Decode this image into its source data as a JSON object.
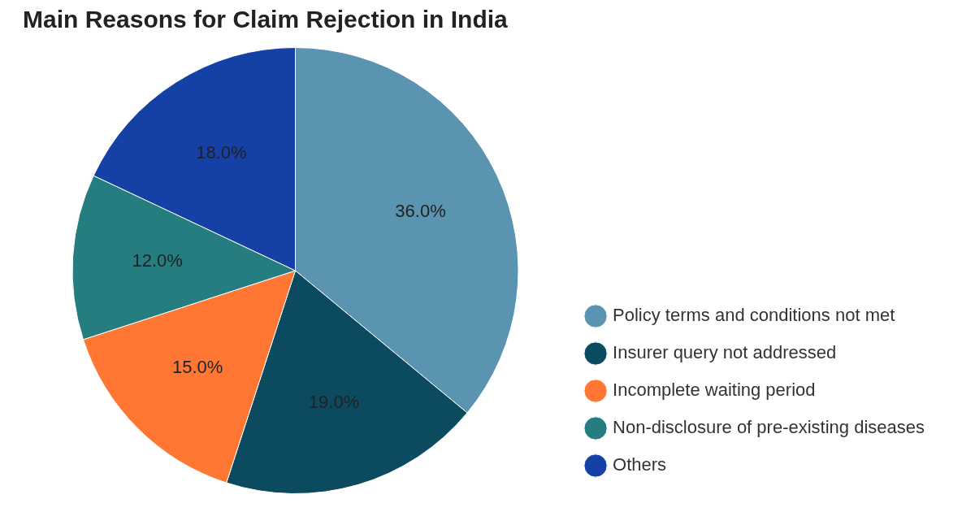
{
  "chart_data": {
    "type": "pie",
    "title": "Main Reasons for Claim Rejection in India",
    "categories": [
      "Policy terms and conditions not met",
      "Insurer query not addressed",
      "Incomplete waiting period",
      "Non-disclosure of pre-existing diseases",
      "Others"
    ],
    "values": [
      36,
      19,
      15,
      12,
      18
    ],
    "colors": [
      "#5b94b1",
      "#0b4a5f",
      "#ff7733",
      "#267d80",
      "#1540a6"
    ],
    "value_labels": [
      "36.0%",
      "19.0%",
      "15.0%",
      "12.0%",
      "18.0%"
    ],
    "legend": "right"
  }
}
